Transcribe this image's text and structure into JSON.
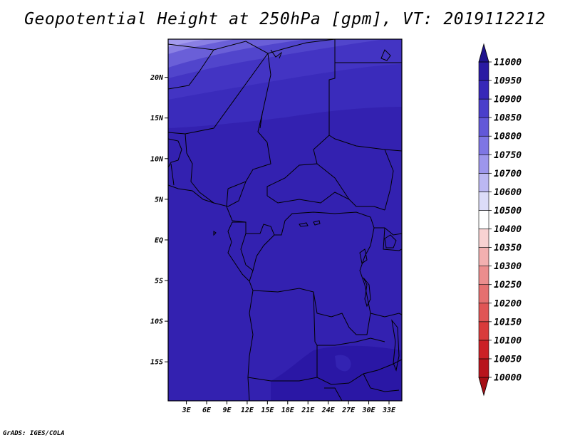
{
  "title": "Geopotential Height at 250hPa [gpm], VT: 2019112212",
  "credit": "GrADS: IGES/COLA",
  "chart_data": {
    "type": "heatmap",
    "variable": "Geopotential Height at 250hPa",
    "units": "gpm",
    "valid_time": "2019112212",
    "x_ticks": [
      "3E",
      "6E",
      "9E",
      "12E",
      "15E",
      "18E",
      "21E",
      "24E",
      "27E",
      "30E",
      "33E"
    ],
    "x_tick_values": [
      3,
      6,
      9,
      12,
      15,
      18,
      21,
      24,
      27,
      30,
      33
    ],
    "y_ticks": [
      "20N",
      "15N",
      "10N",
      "5N",
      "EQ",
      "5S",
      "10S",
      "15S"
    ],
    "y_tick_values": [
      20,
      15,
      10,
      5,
      0,
      -5,
      -10,
      -15
    ],
    "lon_range": [
      0.3,
      34.9
    ],
    "lat_range": [
      -19.8,
      24.7
    ],
    "colorbar": {
      "levels": [
        10000,
        10050,
        10100,
        10150,
        10200,
        10250,
        10300,
        10350,
        10400,
        10500,
        10600,
        10700,
        10750,
        10800,
        10850,
        10900,
        10950,
        11000
      ],
      "colors": [
        "#a50f15",
        "#b8141c",
        "#cb2026",
        "#d93b3b",
        "#e05555",
        "#e57070",
        "#eb8d8d",
        "#f2b0b0",
        "#f8d2d2",
        "#ffffff",
        "#dcdcf8",
        "#bcb8f2",
        "#9d96ec",
        "#7e76e4",
        "#6258d8",
        "#4a3fcb",
        "#3627b8",
        "#2a1aa3",
        "#20148e"
      ],
      "extend": "both"
    }
  }
}
